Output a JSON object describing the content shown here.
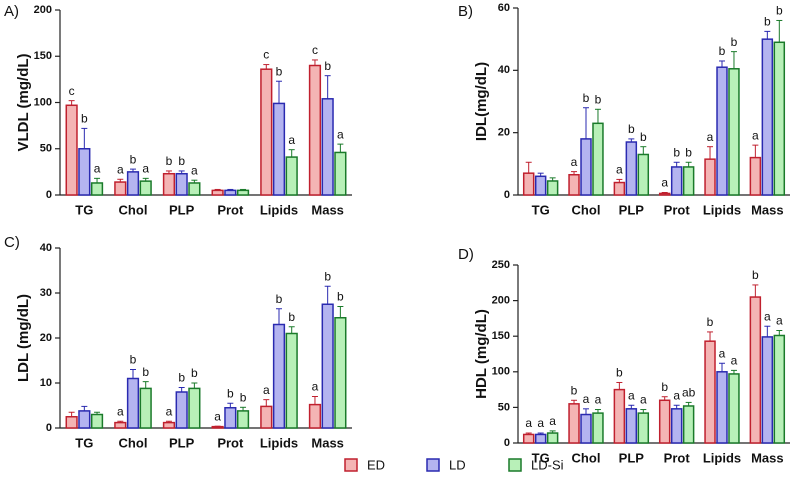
{
  "legend": [
    {
      "name": "ED",
      "color": "#c0202e",
      "fill": "#f4b4b4"
    },
    {
      "name": "LD",
      "color": "#2a2ab0",
      "fill": "#b4b4f0"
    },
    {
      "name": "LD-Si",
      "color": "#1a7a2a",
      "fill": "#b8f0b8"
    }
  ],
  "chart_data": [
    {
      "type": "bar",
      "title": "A)",
      "y_label": "VLDL (mg/dL)",
      "categories": [
        "TG",
        "Chol",
        "PLP",
        "Prot",
        "Lipids",
        "Mass"
      ],
      "ylim": [
        0,
        200
      ],
      "yticks": [
        0,
        50,
        100,
        150,
        200
      ],
      "series": [
        {
          "values": [
            97,
            14,
            23,
            5,
            136,
            140
          ],
          "errors": [
            5,
            3,
            3,
            1,
            5,
            6
          ],
          "letters": [
            "c",
            "a",
            "b",
            null,
            "c",
            "c"
          ]
        },
        {
          "values": [
            50,
            25,
            23,
            5,
            99,
            104
          ],
          "errors": [
            22,
            3,
            3,
            1,
            24,
            25
          ],
          "letters": [
            "b",
            "b",
            "b",
            null,
            "b",
            "b"
          ]
        },
        {
          "values": [
            13,
            15,
            13,
            5,
            41,
            46
          ],
          "errors": [
            5,
            3,
            3,
            1,
            8,
            9
          ],
          "letters": [
            "a",
            "a",
            "a",
            null,
            "a",
            "a"
          ]
        }
      ]
    },
    {
      "type": "bar",
      "title": "B)",
      "y_label": "IDL(mg/dL)",
      "categories": [
        "TG",
        "Chol",
        "PLP",
        "Prot",
        "Lipids",
        "Mass"
      ],
      "ylim": [
        0,
        60
      ],
      "yticks": [
        0,
        20,
        40,
        60
      ],
      "series": [
        {
          "values": [
            7,
            6.5,
            4,
            0.5,
            11.5,
            12
          ],
          "errors": [
            3.5,
            1,
            1,
            0.3,
            4,
            4
          ],
          "letters": [
            null,
            "a",
            "a",
            "a",
            "a",
            "a"
          ]
        },
        {
          "values": [
            6,
            18,
            17,
            9,
            41,
            50
          ],
          "errors": [
            1,
            10,
            1,
            1.5,
            2,
            2.5
          ],
          "letters": [
            null,
            "b",
            "b",
            "b",
            "b",
            "b"
          ]
        },
        {
          "values": [
            4.5,
            23,
            13,
            9,
            40.5,
            49
          ],
          "errors": [
            1,
            4.5,
            2.5,
            1.5,
            5.5,
            7
          ],
          "letters": [
            null,
            "b",
            "b",
            "b",
            "b",
            "b"
          ]
        }
      ]
    },
    {
      "type": "bar",
      "title": "C)",
      "y_label": "LDL (mg/dL)",
      "categories": [
        "TG",
        "Chol",
        "PLP",
        "Prot",
        "Lipids",
        "Mass"
      ],
      "ylim": [
        0,
        40
      ],
      "yticks": [
        0,
        10,
        20,
        30,
        40
      ],
      "series": [
        {
          "values": [
            2.5,
            1.2,
            1.2,
            0.3,
            4.8,
            5.2
          ],
          "errors": [
            1,
            0.3,
            0.3,
            0.1,
            1.5,
            1.8
          ],
          "letters": [
            null,
            "a",
            "a",
            "a",
            "a",
            "a"
          ]
        },
        {
          "values": [
            3.8,
            11,
            8,
            4.5,
            23,
            27.5
          ],
          "errors": [
            1,
            2,
            1,
            1,
            3.5,
            4
          ],
          "letters": [
            null,
            "b",
            "b",
            "b",
            "b",
            "b"
          ]
        },
        {
          "values": [
            3,
            8.8,
            8.8,
            3.8,
            21,
            24.5
          ],
          "errors": [
            0.5,
            1.5,
            1.2,
            0.8,
            1.5,
            2.5
          ],
          "letters": [
            null,
            "b",
            "b",
            "b",
            "b",
            "b"
          ]
        }
      ]
    },
    {
      "type": "bar",
      "title": "D)",
      "y_label": "HDL (mg/dL)",
      "categories": [
        "TG",
        "Chol",
        "PLP",
        "Prot",
        "Lipids",
        "Mass"
      ],
      "ylim": [
        0,
        250
      ],
      "yticks": [
        0,
        50,
        100,
        150,
        200,
        250
      ],
      "series": [
        {
          "values": [
            12,
            55,
            75,
            60,
            143,
            205
          ],
          "errors": [
            2,
            5,
            10,
            5,
            13,
            17
          ],
          "letters": [
            "a",
            "b",
            "b",
            "b",
            "b",
            "b"
          ]
        },
        {
          "values": [
            12,
            40,
            48,
            48,
            100,
            149
          ],
          "errors": [
            2,
            8,
            5,
            5,
            12,
            15
          ],
          "letters": [
            "a",
            "a",
            "a",
            "a",
            "a",
            "a"
          ]
        },
        {
          "values": [
            14,
            42,
            42,
            52,
            97,
            151
          ],
          "errors": [
            3,
            5,
            5,
            5,
            5,
            7
          ],
          "letters": [
            "a",
            "a",
            "a",
            "ab",
            "a",
            "a"
          ]
        }
      ]
    }
  ]
}
